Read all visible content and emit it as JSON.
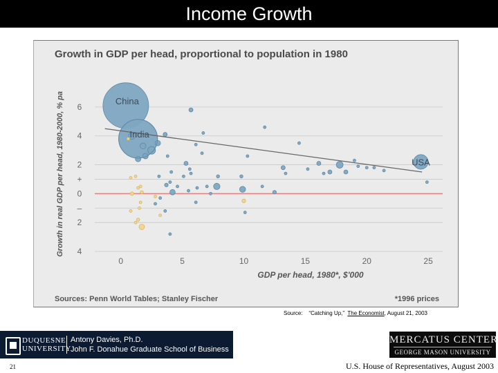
{
  "slide": {
    "title": "Income Growth",
    "source_prefix": "Source:",
    "source_quote": "“Catching Up,”",
    "source_pub": "The Economist",
    "source_date": ", August 21, 2003",
    "slide_number": "21",
    "footer": "U.S. House of Representatives, August 2003"
  },
  "logos": {
    "duquesne_line1": "DUQUESNE",
    "duquesne_line2": "UNIVERSITY",
    "author": "Antony Davies, Ph.D.",
    "school": "John F. Donahue Graduate School of Business",
    "mercatus": "MERCATUS CENTER",
    "gmu": "GEORGE MASON UNIVERSITY"
  },
  "chart_data": {
    "type": "scatter",
    "title": "Growth in GDP per head, proportional to population in 1980",
    "xlabel": "GDP per head, 1980*, $'000",
    "ylabel": "Growth in real GDP per head, 1980-2000, % pa",
    "xlim": [
      -1,
      25.5
    ],
    "ylim": [
      -4,
      7
    ],
    "x_ticks": [
      "0",
      "5",
      "10",
      "15",
      "20",
      "25"
    ],
    "x_tick_values": [
      0,
      5,
      10,
      15,
      20,
      25
    ],
    "y_ticks": [
      "6",
      "4",
      "2",
      "+",
      "0",
      "–",
      "2",
      "4"
    ],
    "y_tick_values": [
      6,
      4,
      2,
      1,
      0,
      -1,
      -2,
      -4
    ],
    "grid": true,
    "zero_line_color": "#e58080",
    "source_note": "Sources: Penn World Tables; Stanley Fischer",
    "price_note": "*1996 prices",
    "colors": {
      "positive": "#7ea6c2",
      "negative": "#f3d58a",
      "trend": "#666666",
      "background": "#ebebeb"
    },
    "trend_line": {
      "x": [
        -1.3,
        24.5
      ],
      "y": [
        4.5,
        1.5
      ]
    },
    "points": [
      {
        "x": 0.4,
        "y": 6.1,
        "r": 1.0,
        "label": "China"
      },
      {
        "x": 1.4,
        "y": 3.8,
        "r": 0.85,
        "label": "India"
      },
      {
        "x": 24.4,
        "y": 2.2,
        "r": 0.32,
        "label": "USA"
      },
      {
        "x": 5.7,
        "y": 5.8,
        "r": 0.09
      },
      {
        "x": 0.9,
        "y": 4.0,
        "r": 0.15
      },
      {
        "x": 1.8,
        "y": 3.3,
        "r": 0.13
      },
      {
        "x": 2.5,
        "y": 3.0,
        "r": 0.17
      },
      {
        "x": 3.0,
        "y": 3.5,
        "r": 0.12
      },
      {
        "x": 3.6,
        "y": 4.1,
        "r": 0.09
      },
      {
        "x": 1.4,
        "y": 2.4,
        "r": 0.12
      },
      {
        "x": 2.0,
        "y": 2.6,
        "r": 0.12
      },
      {
        "x": 3.8,
        "y": 2.6,
        "r": 0.05
      },
      {
        "x": 6.1,
        "y": 3.4,
        "r": 0.06
      },
      {
        "x": 6.7,
        "y": 4.2,
        "r": 0.02
      },
      {
        "x": 6.6,
        "y": 2.8,
        "r": 0.06
      },
      {
        "x": 11.7,
        "y": 4.6,
        "r": 0.025
      },
      {
        "x": 14.5,
        "y": 3.5,
        "r": 0.03
      },
      {
        "x": 10.3,
        "y": 2.6,
        "r": 0.05
      },
      {
        "x": 5.3,
        "y": 2.1,
        "r": 0.09
      },
      {
        "x": 5.6,
        "y": 1.7,
        "r": 0.05
      },
      {
        "x": 5.7,
        "y": 1.4,
        "r": 0.04
      },
      {
        "x": 4.1,
        "y": 1.5,
        "r": 0.04
      },
      {
        "x": 3.1,
        "y": 1.2,
        "r": 0.05
      },
      {
        "x": 4.0,
        "y": 0.8,
        "r": 0.05
      },
      {
        "x": 5.1,
        "y": 1.2,
        "r": 0.06
      },
      {
        "x": 4.6,
        "y": 0.5,
        "r": 0.05
      },
      {
        "x": 3.7,
        "y": 0.6,
        "r": 0.08
      },
      {
        "x": 4.2,
        "y": 0.1,
        "r": 0.12
      },
      {
        "x": 5.5,
        "y": 0.2,
        "r": 0.04
      },
      {
        "x": 6.2,
        "y": 0.4,
        "r": 0.05
      },
      {
        "x": 7.0,
        "y": 0.5,
        "r": 0.04
      },
      {
        "x": 7.3,
        "y": 0.0,
        "r": 0.05
      },
      {
        "x": 7.9,
        "y": 1.2,
        "r": 0.07
      },
      {
        "x": 7.8,
        "y": 0.5,
        "r": 0.14
      },
      {
        "x": 9.8,
        "y": 1.2,
        "r": 0.07
      },
      {
        "x": 9.9,
        "y": 0.3,
        "r": 0.13
      },
      {
        "x": 11.5,
        "y": 0.5,
        "r": 0.02
      },
      {
        "x": 12.5,
        "y": 0.1,
        "r": 0.08
      },
      {
        "x": 13.2,
        "y": 1.8,
        "r": 0.09
      },
      {
        "x": 13.4,
        "y": 1.4,
        "r": 0.05
      },
      {
        "x": 15.2,
        "y": 1.7,
        "r": 0.04
      },
      {
        "x": 16.1,
        "y": 2.1,
        "r": 0.09
      },
      {
        "x": 16.5,
        "y": 1.4,
        "r": 0.03
      },
      {
        "x": 17.0,
        "y": 1.5,
        "r": 0.09
      },
      {
        "x": 17.8,
        "y": 2.0,
        "r": 0.15
      },
      {
        "x": 18.3,
        "y": 1.5,
        "r": 0.09
      },
      {
        "x": 19.0,
        "y": 2.3,
        "r": 0.04
      },
      {
        "x": 19.3,
        "y": 1.9,
        "r": 0.05
      },
      {
        "x": 20.0,
        "y": 1.8,
        "r": 0.04
      },
      {
        "x": 20.6,
        "y": 1.8,
        "r": 0.04
      },
      {
        "x": 21.4,
        "y": 1.6,
        "r": 0.05
      },
      {
        "x": 24.9,
        "y": 0.8,
        "r": 0.04
      },
      {
        "x": 2.8,
        "y": -0.7,
        "r": 0.05
      },
      {
        "x": 3.2,
        "y": -0.3,
        "r": 0.04
      },
      {
        "x": 3.6,
        "y": -1.2,
        "r": 0.05
      },
      {
        "x": 6.1,
        "y": -0.6,
        "r": 0.06
      },
      {
        "x": 10.1,
        "y": -1.3,
        "r": 0.06
      },
      {
        "x": 4.0,
        "y": -2.8,
        "r": 0.02
      },
      {
        "x": 0.8,
        "y": 1.1,
        "r": 0.04,
        "neg": true
      },
      {
        "x": 1.2,
        "y": 1.2,
        "r": 0.04,
        "neg": true
      },
      {
        "x": 1.4,
        "y": 0.4,
        "r": 0.05,
        "neg": true
      },
      {
        "x": 1.6,
        "y": 0.5,
        "r": 0.04,
        "neg": true
      },
      {
        "x": 0.9,
        "y": 0.0,
        "r": 0.08,
        "neg": true
      },
      {
        "x": 1.7,
        "y": 0.1,
        "r": 0.07,
        "neg": true
      },
      {
        "x": 2.8,
        "y": -0.2,
        "r": 0.04,
        "neg": true
      },
      {
        "x": 1.6,
        "y": -0.6,
        "r": 0.05,
        "neg": true
      },
      {
        "x": 0.8,
        "y": -1.2,
        "r": 0.05,
        "neg": true
      },
      {
        "x": 1.5,
        "y": -1.0,
        "r": 0.04,
        "neg": true
      },
      {
        "x": 1.4,
        "y": -1.8,
        "r": 0.07,
        "neg": true
      },
      {
        "x": 1.2,
        "y": -2.0,
        "r": 0.04,
        "neg": true
      },
      {
        "x": 1.7,
        "y": -2.3,
        "r": 0.12,
        "neg": true
      },
      {
        "x": 3.2,
        "y": -1.5,
        "r": 0.04,
        "neg": true
      },
      {
        "x": 10.0,
        "y": -0.5,
        "r": 0.08,
        "neg": true
      },
      {
        "x": 0.6,
        "y": 3.8,
        "r": 0.04,
        "neg": true
      }
    ]
  }
}
